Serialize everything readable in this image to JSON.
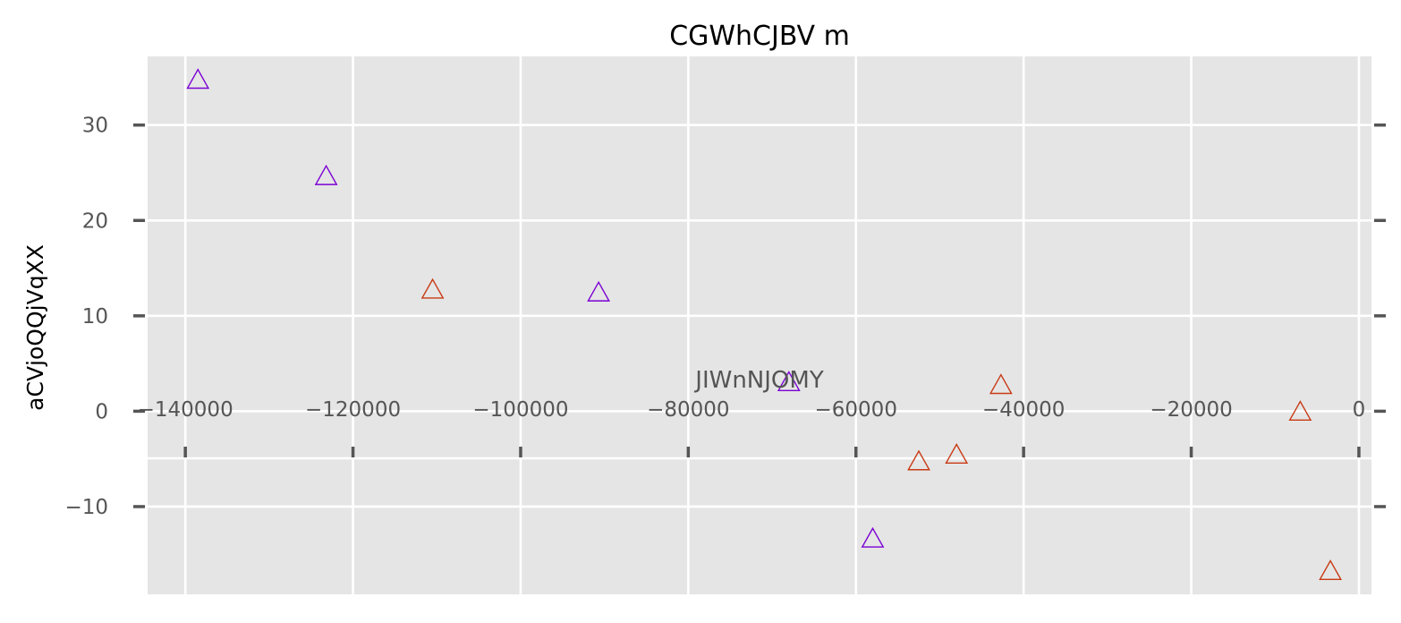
{
  "chart_data": {
    "type": "scatter",
    "title": "CGWhCJBV m",
    "xlabel": "JIWnNJOMY",
    "ylabel": "aCVjoQQjVqXX",
    "xlim": [
      -144500,
      1500
    ],
    "ylim": [
      -19.2,
      37.2
    ],
    "x_ticks": [
      -140000,
      -120000,
      -100000,
      -80000,
      -60000,
      -40000,
      -20000,
      0
    ],
    "x_tick_labels": [
      "−140000",
      "−120000",
      "−100000",
      "−80000",
      "−60000",
      "−40000",
      "−20000",
      "0"
    ],
    "y_ticks": [
      -10,
      0,
      10,
      20,
      30
    ],
    "y_tick_labels": [
      "−10",
      "0",
      "10",
      "20",
      "30"
    ],
    "grid": true,
    "marker": "triangle-up-open",
    "colors": {
      "background": "#e5e5e5",
      "grid": "#ffffff",
      "ticks": "#555555",
      "series_1": "#7b00d4",
      "series_2": "#c83a14"
    },
    "series": [
      {
        "color": "#7b00d4",
        "points": [
          {
            "x": -138500,
            "y": 34.6
          },
          {
            "x": -123200,
            "y": 24.5
          },
          {
            "x": -90700,
            "y": 12.3
          },
          {
            "x": -68000,
            "y": 2.9
          },
          {
            "x": -58000,
            "y": -13.5
          }
        ]
      },
      {
        "color": "#c83a14",
        "points": [
          {
            "x": -110500,
            "y": 12.6
          },
          {
            "x": -52500,
            "y": -5.4
          },
          {
            "x": -48000,
            "y": -4.7
          },
          {
            "x": -42700,
            "y": 2.6
          },
          {
            "x": -7000,
            "y": -0.2
          },
          {
            "x": -3400,
            "y": -16.9
          }
        ]
      }
    ]
  }
}
